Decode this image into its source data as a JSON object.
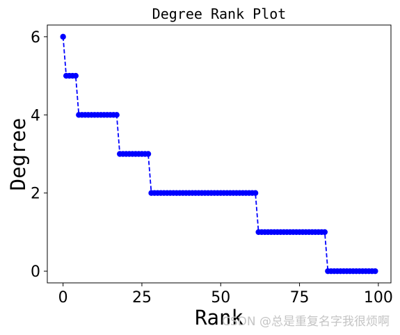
{
  "chart_data": {
    "type": "line",
    "title": "Degree Rank Plot",
    "xlabel": "Rank",
    "ylabel": "Degree",
    "xlim": [
      -5,
      104
    ],
    "ylim": [
      -0.3,
      6.3
    ],
    "xticks": [
      0,
      25,
      50,
      75,
      100
    ],
    "yticks": [
      0,
      2,
      4,
      6
    ],
    "grid": false,
    "legend": "none",
    "series": [
      {
        "color": "#0000ff",
        "line_style": "dashed",
        "marker": "circle",
        "x": [
          0,
          1,
          2,
          3,
          4,
          5,
          6,
          7,
          8,
          9,
          10,
          11,
          12,
          13,
          14,
          15,
          16,
          17,
          18,
          19,
          20,
          21,
          22,
          23,
          24,
          25,
          26,
          27,
          28,
          29,
          30,
          31,
          32,
          33,
          34,
          35,
          36,
          37,
          38,
          39,
          40,
          41,
          42,
          43,
          44,
          45,
          46,
          47,
          48,
          49,
          50,
          51,
          52,
          53,
          54,
          55,
          56,
          57,
          58,
          59,
          60,
          61,
          62,
          63,
          64,
          65,
          66,
          67,
          68,
          69,
          70,
          71,
          72,
          73,
          74,
          75,
          76,
          77,
          78,
          79,
          80,
          81,
          82,
          83,
          84,
          85,
          86,
          87,
          88,
          89,
          90,
          91,
          92,
          93,
          94,
          95,
          96,
          97,
          98,
          99
        ],
        "y": [
          6,
          5,
          5,
          5,
          5,
          4,
          4,
          4,
          4,
          4,
          4,
          4,
          4,
          4,
          4,
          4,
          4,
          4,
          3,
          3,
          3,
          3,
          3,
          3,
          3,
          3,
          3,
          3,
          2,
          2,
          2,
          2,
          2,
          2,
          2,
          2,
          2,
          2,
          2,
          2,
          2,
          2,
          2,
          2,
          2,
          2,
          2,
          2,
          2,
          2,
          2,
          2,
          2,
          2,
          2,
          2,
          2,
          2,
          2,
          2,
          2,
          2,
          1,
          1,
          1,
          1,
          1,
          1,
          1,
          1,
          1,
          1,
          1,
          1,
          1,
          1,
          1,
          1,
          1,
          1,
          1,
          1,
          1,
          1,
          0,
          0,
          0,
          0,
          0,
          0,
          0,
          0,
          0,
          0,
          0,
          0,
          0,
          0,
          0,
          0
        ]
      }
    ]
  },
  "watermark": "CSDN @总是重复名字我很烦啊"
}
